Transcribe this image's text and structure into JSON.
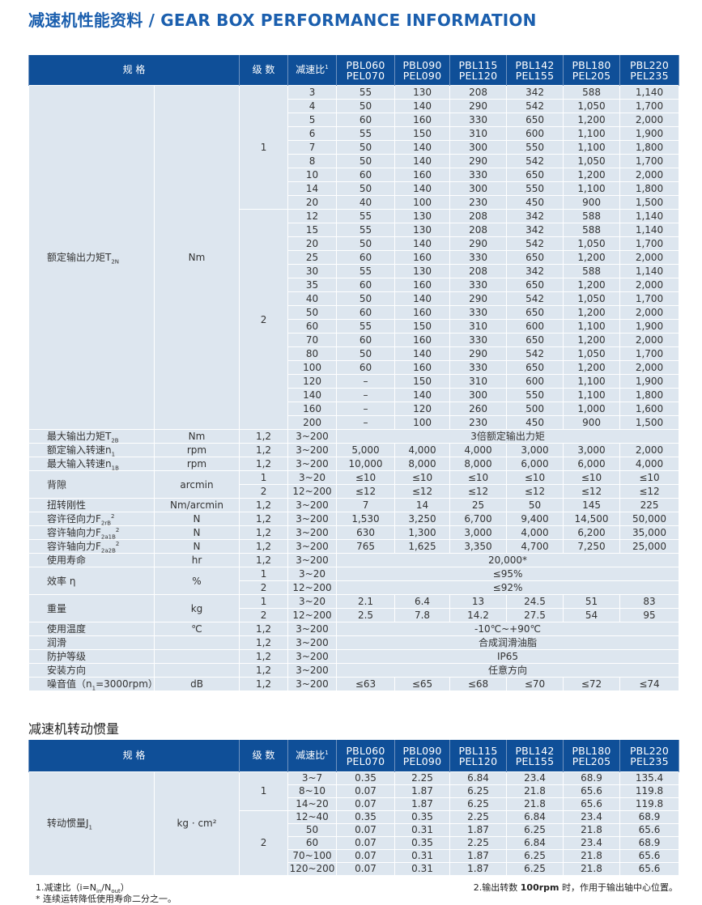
{
  "page_title": "减速机性能资料 / GEAR BOX PERFORMANCE INFORMATION",
  "colors": {
    "header_bg": "#0f4f98",
    "cell_bg": "#dde6ef",
    "title": "#1b5fae",
    "stage_separator": "#c8374a"
  },
  "header": {
    "spec": "规 格",
    "stage": "级 数",
    "ratio": "减速比",
    "ratio_sup": "1",
    "models": [
      [
        "PBL060",
        "PEL070"
      ],
      [
        "PBL090",
        "PEL090"
      ],
      [
        "PBL115",
        "PEL120"
      ],
      [
        "PBL142",
        "PEL155"
      ],
      [
        "PBL180",
        "PEL205"
      ],
      [
        "PBL220",
        "PEL235"
      ]
    ]
  },
  "table1": {
    "torque": {
      "label": "额定输出力矩T",
      "label_sub": "2N",
      "unit": "Nm",
      "stages": [
        {
          "stage": "1",
          "rows": [
            [
              "3",
              "55",
              "130",
              "208",
              "342",
              "588",
              "1,140"
            ],
            [
              "4",
              "50",
              "140",
              "290",
              "542",
              "1,050",
              "1,700"
            ],
            [
              "5",
              "60",
              "160",
              "330",
              "650",
              "1,200",
              "2,000"
            ],
            [
              "6",
              "55",
              "150",
              "310",
              "600",
              "1,100",
              "1,900"
            ],
            [
              "7",
              "50",
              "140",
              "300",
              "550",
              "1,100",
              "1,800"
            ],
            [
              "8",
              "50",
              "140",
              "290",
              "542",
              "1,050",
              "1,700"
            ],
            [
              "10",
              "60",
              "160",
              "330",
              "650",
              "1,200",
              "2,000"
            ],
            [
              "14",
              "50",
              "140",
              "300",
              "550",
              "1,100",
              "1,800"
            ],
            [
              "20",
              "40",
              "100",
              "230",
              "450",
              "900",
              "1,500"
            ]
          ]
        },
        {
          "stage": "2",
          "rows": [
            [
              "12",
              "55",
              "130",
              "208",
              "342",
              "588",
              "1,140"
            ],
            [
              "15",
              "55",
              "130",
              "208",
              "342",
              "588",
              "1,140"
            ],
            [
              "20",
              "50",
              "140",
              "290",
              "542",
              "1,050",
              "1,700"
            ],
            [
              "25",
              "60",
              "160",
              "330",
              "650",
              "1,200",
              "2,000"
            ],
            [
              "30",
              "55",
              "130",
              "208",
              "342",
              "588",
              "1,140"
            ],
            [
              "35",
              "60",
              "160",
              "330",
              "650",
              "1,200",
              "2,000"
            ],
            [
              "40",
              "50",
              "140",
              "290",
              "542",
              "1,050",
              "1,700"
            ],
            [
              "50",
              "60",
              "160",
              "330",
              "650",
              "1,200",
              "2,000"
            ],
            [
              "60",
              "55",
              "150",
              "310",
              "600",
              "1,100",
              "1,900"
            ],
            [
              "70",
              "60",
              "160",
              "330",
              "650",
              "1,200",
              "2,000"
            ],
            [
              "80",
              "50",
              "140",
              "290",
              "542",
              "1,050",
              "1,700"
            ],
            [
              "100",
              "60",
              "160",
              "330",
              "650",
              "1,200",
              "2,000"
            ],
            [
              "120",
              "–",
              "150",
              "310",
              "600",
              "1,100",
              "1,900"
            ],
            [
              "140",
              "–",
              "140",
              "300",
              "550",
              "1,100",
              "1,800"
            ],
            [
              "160",
              "–",
              "120",
              "260",
              "500",
              "1,000",
              "1,600"
            ],
            [
              "200",
              "–",
              "100",
              "230",
              "450",
              "900",
              "1,500"
            ]
          ]
        }
      ]
    },
    "specs": [
      {
        "label": "最大输出力矩T",
        "sub": "2B",
        "sup": "",
        "unit": "Nm",
        "rows": [
          {
            "stage": "1,2",
            "ratio": "3~200",
            "span": "3倍额定输出力矩"
          }
        ]
      },
      {
        "label": "额定输入转速n",
        "sub": "1",
        "sup": "",
        "unit": "rpm",
        "rows": [
          {
            "stage": "1,2",
            "ratio": "3~200",
            "values": [
              "5,000",
              "4,000",
              "4,000",
              "3,000",
              "3,000",
              "2,000"
            ]
          }
        ]
      },
      {
        "label": "最大输入转速n",
        "sub": "1B",
        "sup": "",
        "unit": "rpm",
        "rows": [
          {
            "stage": "1,2",
            "ratio": "3~200",
            "values": [
              "10,000",
              "8,000",
              "8,000",
              "6,000",
              "6,000",
              "4,000"
            ]
          }
        ]
      },
      {
        "label": "背隙",
        "sub": "",
        "sup": "",
        "unit": "arcmin",
        "rows": [
          {
            "stage": "1",
            "ratio": "3~20",
            "values": [
              "≤10",
              "≤10",
              "≤10",
              "≤10",
              "≤10",
              "≤10"
            ]
          },
          {
            "stage": "2",
            "ratio": "12~200",
            "values": [
              "≤12",
              "≤12",
              "≤12",
              "≤12",
              "≤12",
              "≤12"
            ]
          }
        ]
      },
      {
        "label": "扭转刚性",
        "sub": "",
        "sup": "",
        "unit": "Nm/arcmin",
        "rows": [
          {
            "stage": "1,2",
            "ratio": "3~200",
            "values": [
              "7",
              "14",
              "25",
              "50",
              "145",
              "225"
            ]
          }
        ]
      },
      {
        "label": "容许径向力F",
        "sub": "2rB",
        "sup": "2",
        "unit": "N",
        "rows": [
          {
            "stage": "1,2",
            "ratio": "3~200",
            "values": [
              "1,530",
              "3,250",
              "6,700",
              "9,400",
              "14,500",
              "50,000"
            ]
          }
        ]
      },
      {
        "label": "容许轴向力F",
        "sub": "2a1B",
        "sup": "2",
        "unit": "N",
        "rows": [
          {
            "stage": "1,2",
            "ratio": "3~200",
            "values": [
              "630",
              "1,300",
              "3,000",
              "4,000",
              "6,200",
              "35,000"
            ]
          }
        ]
      },
      {
        "label": "容许轴向力F",
        "sub": "2a2B",
        "sup": "2",
        "unit": "N",
        "rows": [
          {
            "stage": "1,2",
            "ratio": "3~200",
            "values": [
              "765",
              "1,625",
              "3,350",
              "4,700",
              "7,250",
              "25,000"
            ]
          }
        ]
      },
      {
        "label": "使用寿命",
        "sub": "",
        "sup": "",
        "unit": "hr",
        "rows": [
          {
            "stage": "1,2",
            "ratio": "3~200",
            "span": "20,000*"
          }
        ]
      },
      {
        "label": "效率 η",
        "sub": "",
        "sup": "",
        "unit": "%",
        "rows": [
          {
            "stage": "1",
            "ratio": "3~20",
            "span": "≤95%"
          },
          {
            "stage": "2",
            "ratio": "12~200",
            "span": "≤92%"
          }
        ]
      },
      {
        "label": "重量",
        "sub": "",
        "sup": "",
        "unit": "kg",
        "rows": [
          {
            "stage": "1",
            "ratio": "3~20",
            "values": [
              "2.1",
              "6.4",
              "13",
              "24.5",
              "51",
              "83"
            ]
          },
          {
            "stage": "2",
            "ratio": "12~200",
            "values": [
              "2.5",
              "7.8",
              "14.2",
              "27.5",
              "54",
              "95"
            ]
          }
        ]
      },
      {
        "label": "使用温度",
        "sub": "",
        "sup": "",
        "unit": "℃",
        "rows": [
          {
            "stage": "1,2",
            "ratio": "3~200",
            "span": "-10℃~+90℃"
          }
        ]
      },
      {
        "label": "润滑",
        "sub": "",
        "sup": "",
        "unit": "",
        "rows": [
          {
            "stage": "1,2",
            "ratio": "3~200",
            "span": "合成润滑油脂"
          }
        ]
      },
      {
        "label": "防护等级",
        "sub": "",
        "sup": "",
        "unit": "",
        "rows": [
          {
            "stage": "1,2",
            "ratio": "3~200",
            "span": "IP65"
          }
        ]
      },
      {
        "label": "安装方向",
        "sub": "",
        "sup": "",
        "unit": "",
        "rows": [
          {
            "stage": "1,2",
            "ratio": "3~200",
            "span": "任意方向"
          }
        ]
      },
      {
        "label": "噪音值（n",
        "sub": "1",
        "sup": "",
        "label_suffix": "=3000rpm）",
        "unit": "dB",
        "rows": [
          {
            "stage": "1,2",
            "ratio": "3~200",
            "values": [
              "≤63",
              "≤65",
              "≤68",
              "≤70",
              "≤72",
              "≤74"
            ]
          }
        ]
      }
    ]
  },
  "inertia_title": "减速机转动惯量",
  "table2": {
    "label": "转动惯量J",
    "label_sub": "1",
    "unit": "kg · cm²",
    "stages": [
      {
        "stage": "1",
        "rows": [
          [
            "3~7",
            "0.35",
            "2.25",
            "6.84",
            "23.4",
            "68.9",
            "135.4"
          ],
          [
            "8~10",
            "0.07",
            "1.87",
            "6.25",
            "21.8",
            "65.6",
            "119.8"
          ],
          [
            "14~20",
            "0.07",
            "1.87",
            "6.25",
            "21.8",
            "65.6",
            "119.8"
          ]
        ]
      },
      {
        "stage": "2",
        "rows": [
          [
            "12~40",
            "0.35",
            "0.35",
            "2.25",
            "6.84",
            "23.4",
            "68.9"
          ],
          [
            "50",
            "0.07",
            "0.31",
            "1.87",
            "6.25",
            "21.8",
            "65.6"
          ],
          [
            "60",
            "0.07",
            "0.35",
            "2.25",
            "6.84",
            "23.4",
            "68.9"
          ],
          [
            "70~100",
            "0.07",
            "0.31",
            "1.87",
            "6.25",
            "21.8",
            "65.6"
          ],
          [
            "120~200",
            "0.07",
            "0.31",
            "1.87",
            "6.25",
            "21.8",
            "65.6"
          ]
        ]
      }
    ]
  },
  "notes": {
    "note1": {
      "prefix": "1.减速比（i=N",
      "sub1": "in",
      "mid": "/N",
      "sub2": "out",
      "suffix": "）"
    },
    "note2": {
      "prefix": "2.输出转数 ",
      "bold": "100rpm",
      "suffix": " 时，作用于输出轴中心位置。"
    },
    "note3": "* 连续运转降低使用寿命二分之一。"
  }
}
